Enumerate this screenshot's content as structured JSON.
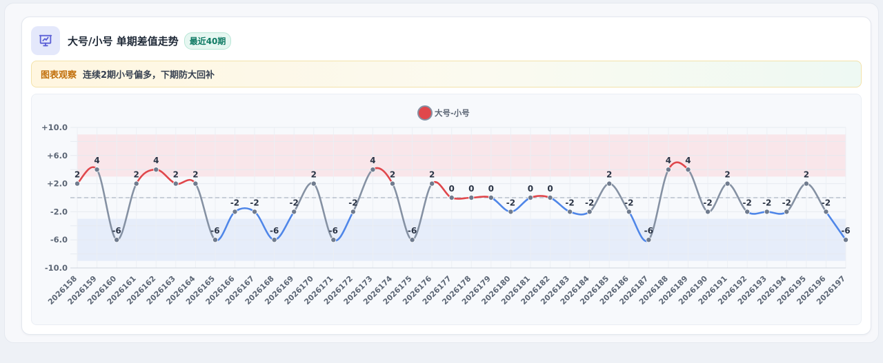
{
  "header": {
    "icon": "chart-presentation-icon",
    "title": "大号/小号 单期差值走势",
    "badge": "最近40期"
  },
  "insight": {
    "tag": "图表观察",
    "text": "连续2期小号偏多，下期防大回补"
  },
  "colors": {
    "positive": "#e0474c",
    "negative": "#4f86e8",
    "neutral": "#8591a3",
    "high_band": "#f9e6ea",
    "low_band": "#e6edfa"
  },
  "chart_data": {
    "type": "line",
    "smooth": true,
    "legend": {
      "position": "top-center",
      "items": [
        {
          "name": "大号-小号",
          "color": "#e0474c"
        }
      ]
    },
    "ylim": [
      -10,
      10
    ],
    "yticks": [
      "-10.0",
      "-6.0",
      "-2.0",
      "+2.0",
      "+6.0",
      "+10.0"
    ],
    "reference_line": 0,
    "bands": [
      {
        "from": 3,
        "to": 9,
        "color": "#f9e6ea"
      },
      {
        "from": -9,
        "to": -3,
        "color": "#e6edfa"
      }
    ],
    "grid": true,
    "categories": [
      "2026158",
      "2026159",
      "2026160",
      "2026161",
      "2026162",
      "2026163",
      "2026164",
      "2026165",
      "2026166",
      "2026167",
      "2026168",
      "2026169",
      "2026170",
      "2026171",
      "2026172",
      "2026173",
      "2026174",
      "2026175",
      "2026176",
      "2026177",
      "2026178",
      "2026179",
      "2026180",
      "2026181",
      "2026182",
      "2026183",
      "2026184",
      "2026185",
      "2026186",
      "2026187",
      "2026188",
      "2026189",
      "2026190",
      "2026191",
      "2026192",
      "2026193",
      "2026194",
      "2026195",
      "2026196",
      "2026197"
    ],
    "series": [
      {
        "name": "大号-小号",
        "values": [
          2,
          4,
          -6,
          2,
          4,
          2,
          2,
          -6,
          -2,
          -2,
          -6,
          -2,
          2,
          -6,
          -2,
          4,
          2,
          -6,
          2,
          0,
          0,
          0,
          -2,
          0,
          0,
          -2,
          -2,
          2,
          -2,
          -6,
          4,
          4,
          -2,
          2,
          -2,
          -2,
          -2,
          2,
          -2,
          -6
        ]
      }
    ]
  }
}
